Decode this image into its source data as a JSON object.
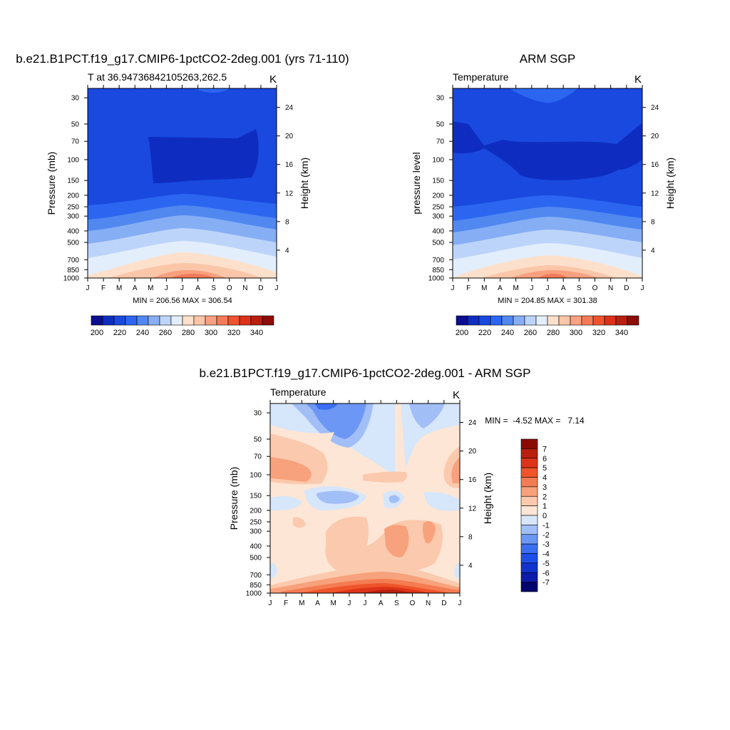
{
  "months": [
    "J",
    "F",
    "M",
    "A",
    "M",
    "J",
    "J",
    "A",
    "S",
    "O",
    "N",
    "D",
    "J"
  ],
  "pressure_ticks": [
    "30",
    "50",
    "70",
    "100",
    "150",
    "200",
    "250",
    "300",
    "400",
    "500",
    "700",
    "850",
    "1000"
  ],
  "pressure_values": [
    30,
    50,
    70,
    100,
    150,
    200,
    250,
    300,
    400,
    500,
    700,
    850,
    1000
  ],
  "height_ticks": [
    "24",
    "20",
    "16",
    "12",
    "8",
    "4"
  ],
  "height_values_km": [
    24,
    20,
    16,
    12,
    8,
    4
  ],
  "colors": {
    "temp": [
      "#0b0e8f",
      "#0e2dc0",
      "#1a49df",
      "#2c66f0",
      "#5088f0",
      "#86aef5",
      "#bdd4fa",
      "#e3eefc",
      "#fde0cb",
      "#fbc6a8",
      "#f8a07f",
      "#f47a57",
      "#f0532f",
      "#dd3119",
      "#b91f0f",
      "#8c0c06"
    ],
    "diff": [
      "#03036d",
      "#0b1ca8",
      "#1234cd",
      "#1f4ee8",
      "#3c6ef2",
      "#6d97f4",
      "#a2bef7",
      "#d6e6fb",
      "#fde6d5",
      "#fbc9ad",
      "#f7a27c",
      "#f47c52",
      "#ef542a",
      "#dc3419",
      "#b91f0f",
      "#8a0b05"
    ]
  },
  "chart_data": [
    {
      "id": "model",
      "type": "contour",
      "title": "b.e21.B1PCT.f19_g17.CMIP6-1pctCO2-2deg.001 (yrs 71-110)",
      "left_label": "T at 36.94736842105263,262.5",
      "units": "K",
      "ylabel": "Pressure (mb)",
      "ylabel_right": "Height (km)",
      "minmax": "MIN = 206.56 MAX = 306.54",
      "min": 206.56,
      "max": 306.54,
      "colorbar_labels": [
        "200",
        "220",
        "240",
        "260",
        "280",
        "300",
        "320",
        "340"
      ],
      "colorbar_values": [
        200,
        220,
        240,
        260,
        280,
        300,
        320,
        340
      ]
    },
    {
      "id": "obs",
      "type": "contour",
      "title": "ARM SGP",
      "left_label": "Temperature",
      "units": "K",
      "ylabel": "pressure level",
      "ylabel_right": "Height (km)",
      "minmax": "MIN = 204.85 MAX = 301.38",
      "min": 204.85,
      "max": 301.38,
      "colorbar_labels": [
        "200",
        "220",
        "240",
        "260",
        "280",
        "300",
        "320",
        "340"
      ],
      "colorbar_values": [
        200,
        220,
        240,
        260,
        280,
        300,
        320,
        340
      ]
    },
    {
      "id": "diff",
      "type": "contour",
      "title": "b.e21.B1PCT.f19_g17.CMIP6-1pctCO2-2deg.001 - ARM SGP",
      "left_label": "Temperature",
      "units": "K",
      "ylabel": "Pressure (mb)",
      "ylabel_right": "Height (km)",
      "minmax": "MIN =  -4.52 MAX =   7.14",
      "min": -4.52,
      "max": 7.14,
      "colorbar_labels": [
        "7",
        "6",
        "5",
        "4",
        "3",
        "2",
        "1",
        "0",
        "-1",
        "-2",
        "-3",
        "-4",
        "-5",
        "-6",
        "-7"
      ],
      "colorbar_values": [
        7,
        6,
        5,
        4,
        3,
        2,
        1,
        0,
        -1,
        -2,
        -3,
        -4,
        -5,
        -6,
        -7
      ]
    }
  ]
}
